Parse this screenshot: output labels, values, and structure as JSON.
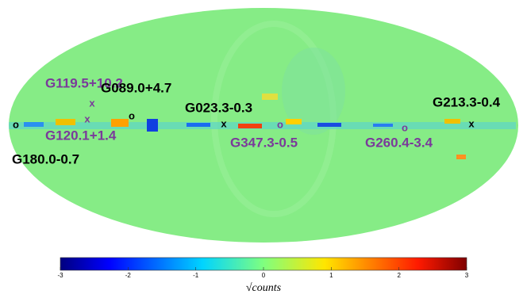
{
  "labels": [
    {
      "text": "G119.5+10.2",
      "color": "#7a3a9a"
    },
    {
      "text": "G089.0+4.7",
      "color": "#000000"
    },
    {
      "text": "G120.1+1.4",
      "color": "#7a3a9a"
    },
    {
      "text": "G180.0-0.7",
      "color": "#000000"
    },
    {
      "text": "G023.3-0.3",
      "color": "#000000"
    },
    {
      "text": "G347.3-0.5",
      "color": "#7a3a9a"
    },
    {
      "text": "G260.4-3.4",
      "color": "#7a3a9a"
    },
    {
      "text": "G213.3-0.4",
      "color": "#000000"
    }
  ],
  "markers": [
    {
      "symbol": "x",
      "color": "#7a3a9a"
    },
    {
      "symbol": "o",
      "color": "#000000"
    },
    {
      "symbol": "x",
      "color": "#7a3a9a"
    },
    {
      "symbol": "o",
      "color": "#000000"
    },
    {
      "symbol": "x",
      "color": "#000000"
    },
    {
      "symbol": "o",
      "color": "#7a3a9a"
    },
    {
      "symbol": "o",
      "color": "#7a3a9a"
    },
    {
      "symbol": "x",
      "color": "#000000"
    }
  ],
  "colorbar": {
    "lim": [
      -3,
      3
    ],
    "ticks": [
      -3,
      -2,
      -1,
      0,
      1,
      2,
      3
    ],
    "label": "√counts"
  }
}
